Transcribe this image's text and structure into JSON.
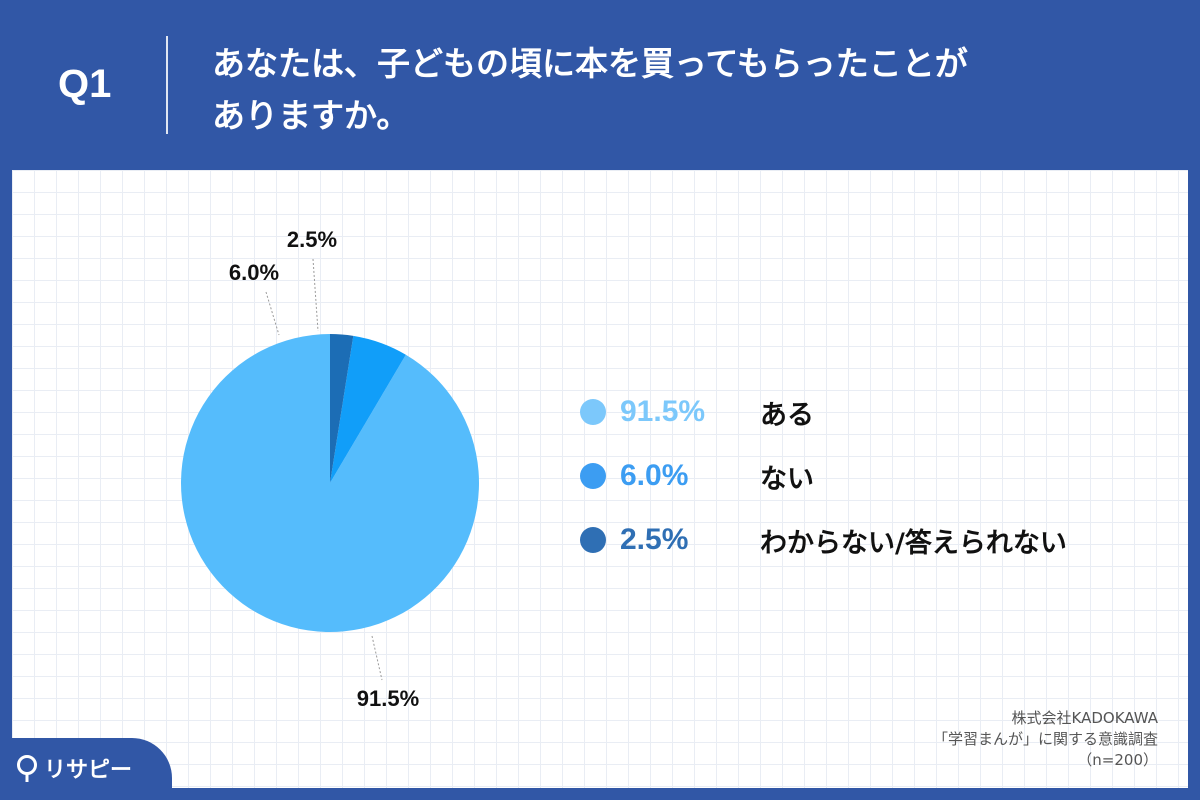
{
  "header": {
    "q_label": "Q1",
    "question_line1": "あなたは、子どもの頃に本を買ってもらったことが",
    "question_line2": "ありますか。"
  },
  "chart_data": {
    "type": "pie",
    "start_angle_deg": 0,
    "direction": "clockwise",
    "categories": [
      "ある",
      "ない",
      "わからない/答えられない"
    ],
    "values": [
      91.5,
      6.0,
      2.5
    ],
    "value_labels": [
      "91.5%",
      "6.0%",
      "2.5%"
    ],
    "colors": [
      "#55bcfc",
      "#119ef9",
      "#1c6db5"
    ],
    "legend_placement": "right"
  },
  "legend": {
    "items": [
      {
        "pct": "91.5%",
        "name": "ある",
        "color": "#7cc8fb"
      },
      {
        "pct": "6.0%",
        "name": "ない",
        "color": "#3c9df2"
      },
      {
        "pct": "2.5%",
        "name": "わからない/答えられない",
        "color": "#2f6fb4"
      }
    ]
  },
  "source": {
    "line1": "株式会社KADOKAWA",
    "line2": "「学習まんが」に関する意識調査",
    "line3": "（n=200）"
  },
  "brand": {
    "logo_text": "リサピー"
  },
  "colors": {
    "header_bg": "#3157a6",
    "panel_bg": "#ffffff"
  }
}
